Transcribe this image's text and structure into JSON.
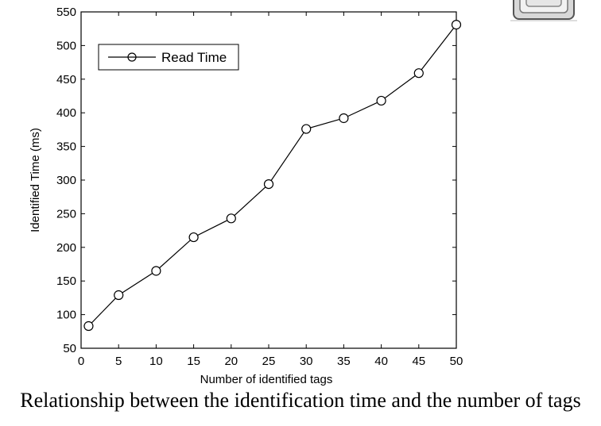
{
  "caption": "Relationship between the identification time and the number of tags",
  "decoration": {
    "icon": "rfid-chip-icon"
  },
  "chart_data": {
    "type": "line",
    "title": "",
    "xlabel": "Number of identified tags",
    "ylabel": "Identified Time (ms)",
    "xlim": [
      0,
      50
    ],
    "ylim": [
      50,
      550
    ],
    "xticks": [
      0,
      5,
      10,
      15,
      20,
      25,
      30,
      35,
      40,
      45,
      50
    ],
    "yticks": [
      50,
      100,
      150,
      200,
      250,
      300,
      350,
      400,
      450,
      500,
      550
    ],
    "grid": false,
    "legend": "top-left",
    "marker": "circle",
    "colors": {
      "line": "#000000",
      "axis": "#000000",
      "background": "#ffffff"
    },
    "series": [
      {
        "name": "Read Time",
        "x": [
          1,
          5,
          10,
          15,
          20,
          25,
          30,
          35,
          40,
          45,
          50
        ],
        "y": [
          83,
          129,
          165,
          215,
          243,
          294,
          376,
          392,
          418,
          459,
          531
        ]
      }
    ]
  }
}
